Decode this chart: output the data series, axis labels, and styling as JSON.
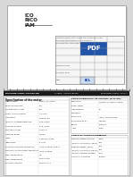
{
  "bg_color": "#d8d8d8",
  "paper_color": "#ffffff",
  "title_lines": [
    "ICO",
    "RICO",
    "IAM"
  ],
  "border_color": "#999999",
  "header_text_left": "MACHINE CODE: CAP200-HB",
  "header_text_mid": "CLIENT: Abbaye Brune",
  "header_text_right": "Production order: 1010 A",
  "left_table_title": "Specification of the motor",
  "left_table_rows": [
    [
      "Line voltage",
      "480V / 3L / 60Hz"
    ],
    [
      "Winding condition",
      "6Kl"
    ],
    [
      "Distribution current",
      "80A"
    ],
    [
      "Power current control",
      "V / FLUX"
    ],
    [
      "Frequency",
      "480Hz / 5%"
    ],
    [
      "Thyristor voltage protection",
      "900 V RMS"
    ],
    [
      "Auxiliary voltage",
      "120 / 60hz"
    ],
    [
      "Starting current",
      "120% Id"
    ],
    [
      "Installed power",
      "3-2000"
    ],
    [
      "Mass",
      "1400KG / 3 086"
    ],
    [
      "Dimension",
      "87 x11"
    ],
    [
      "Physical conditions operations",
      "IP 20 / UL508 / 55014"
    ],
    [
      "Electronic control panel operations",
      "IP 20 / UL508"
    ],
    [
      "Max. temperature",
      "0-C"
    ],
    [
      "Max. temperature",
      "55% x 98%"
    ],
    [
      "Relative humidity",
      "95% to 35°c"
    ]
  ],
  "right_table1_title": "CHARACTERISTICS OF MOTORS (FITTING)",
  "right_table1_rows": [
    [
      "Connection",
      "Y/DELTA (3-4000-6 1000)"
    ],
    [
      "Power factor",
      ""
    ],
    [
      "Temperature",
      "F0"
    ],
    [
      "Frequency",
      ""
    ],
    [
      "Protections",
      "IP54 / 108 MOTORS"
    ],
    [
      "Resistance at 5 t",
      "OTHERS"
    ],
    [
      "Rating",
      "1003/21"
    ],
    [
      "Type",
      "4440"
    ]
  ],
  "right_table2_title": "TABLE OF CONDUCTORS",
  "right_table2_col2": "COLOR",
  "right_table2_rows": [
    [
      "Nominal power of motor",
      "Black"
    ],
    [
      "Thyristor protection (400V)",
      "Red"
    ],
    [
      "Nominal power (100V)",
      "Red"
    ],
    [
      "Thyristor protection (250%)",
      "Red"
    ],
    [
      "Thyristor resistor voltage",
      "Blue"
    ],
    [
      "Circuit for detection",
      "Orange"
    ]
  ]
}
